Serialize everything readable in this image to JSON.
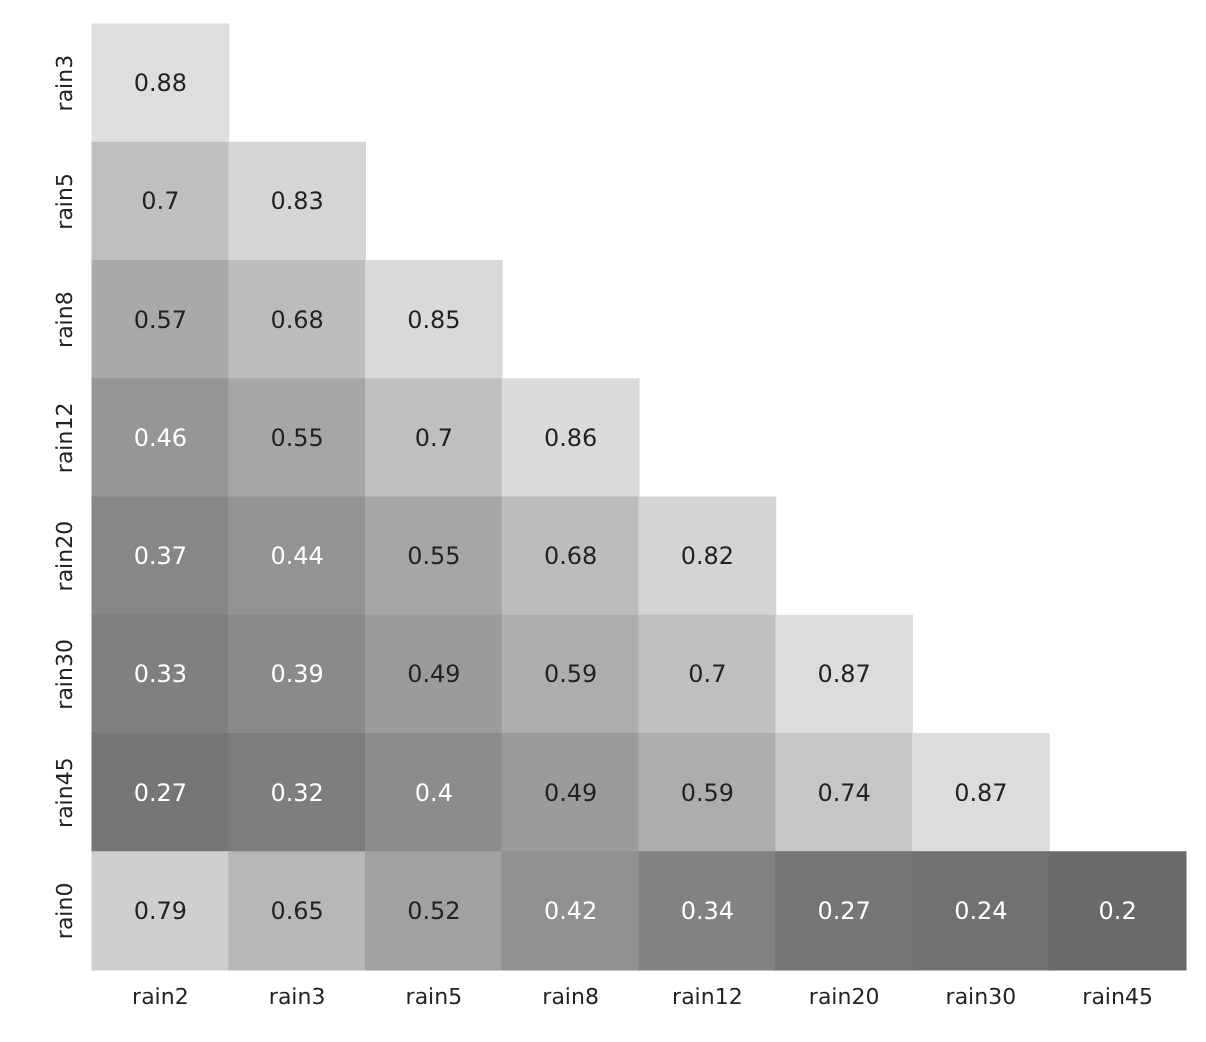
{
  "chart_data": {
    "type": "heatmap",
    "categories": [
      "rain2",
      "rain3",
      "rain5",
      "rain8",
      "rain12",
      "rain20",
      "rain30",
      "rain45"
    ],
    "y_categories": [
      "rain3",
      "rain5",
      "rain8",
      "rain12",
      "rain20",
      "rain30",
      "rain45",
      "rain0"
    ],
    "cells": [
      [
        0.88,
        null,
        null,
        null,
        null,
        null,
        null,
        null
      ],
      [
        0.7,
        0.83,
        null,
        null,
        null,
        null,
        null,
        null
      ],
      [
        0.57,
        0.68,
        0.85,
        null,
        null,
        null,
        null,
        null
      ],
      [
        0.46,
        0.55,
        0.7,
        0.86,
        null,
        null,
        null,
        null
      ],
      [
        0.37,
        0.44,
        0.55,
        0.68,
        0.82,
        null,
        null,
        null
      ],
      [
        0.33,
        0.39,
        0.49,
        0.59,
        0.7,
        0.87,
        null,
        null
      ],
      [
        0.27,
        0.32,
        0.4,
        0.49,
        0.59,
        0.74,
        0.87,
        null
      ],
      [
        0.79,
        0.65,
        0.52,
        0.42,
        0.34,
        0.27,
        0.24,
        0.2
      ]
    ],
    "colors": [
      "#6a6a6a",
      "#dedede"
    ],
    "data_labels": true
  }
}
